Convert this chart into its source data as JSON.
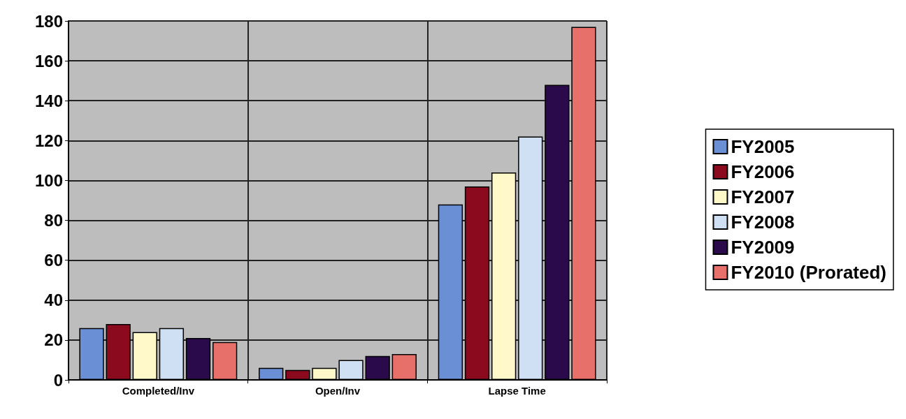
{
  "chart_data": {
    "type": "bar",
    "categories": [
      "Completed/Inv",
      "Open/Inv",
      "Lapse Time"
    ],
    "series": [
      {
        "name": "FY2005",
        "color": "#6b8fd4",
        "values": [
          26,
          6,
          88
        ]
      },
      {
        "name": "FY2006",
        "color": "#8b0a1e",
        "values": [
          28,
          5,
          97
        ]
      },
      {
        "name": "FY2007",
        "color": "#fff8c8",
        "values": [
          24,
          6,
          104
        ]
      },
      {
        "name": "FY2008",
        "color": "#cfe0f5",
        "values": [
          26,
          10,
          122
        ]
      },
      {
        "name": "FY2009",
        "color": "#2a0a4a",
        "values": [
          21,
          12,
          148
        ]
      },
      {
        "name": "FY2010 (Prorated)",
        "color": "#e8706a",
        "values": [
          19,
          13,
          177
        ]
      }
    ],
    "ylim": [
      0,
      180
    ],
    "yticks": [
      0,
      20,
      40,
      60,
      80,
      100,
      120,
      140,
      160,
      180
    ],
    "grid": true,
    "legend": "right"
  }
}
